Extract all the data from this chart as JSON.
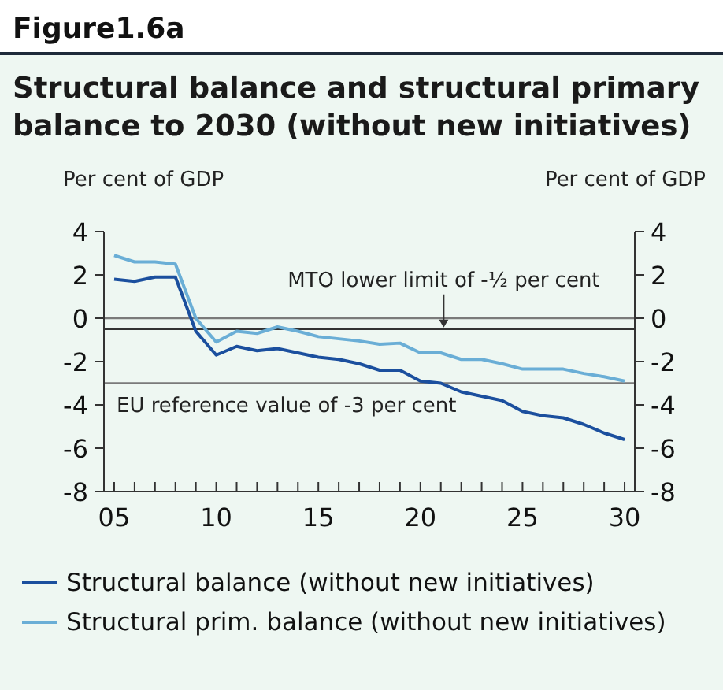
{
  "chart_data": {
    "type": "line",
    "title": "Figure1.6a",
    "subtitle": "Structural balance and structural primary balance to 2030 (without new initiatives)",
    "ylabel": "Per cent of GDP",
    "y2label": "Per cent of GDP",
    "x": [
      2005,
      2006,
      2007,
      2008,
      2009,
      2010,
      2011,
      2012,
      2013,
      2014,
      2015,
      2016,
      2017,
      2018,
      2019,
      2020,
      2021,
      2022,
      2023,
      2024,
      2025,
      2026,
      2027,
      2028,
      2029,
      2030
    ],
    "series": [
      {
        "name": "Structural balance (without new initiatives)",
        "color": "#1b4f9e",
        "values": [
          1.8,
          1.7,
          1.9,
          1.9,
          -0.6,
          -1.7,
          -1.3,
          -1.5,
          -1.4,
          -1.6,
          -1.8,
          -1.9,
          -2.1,
          -2.4,
          -2.4,
          -2.9,
          -3.0,
          -3.4,
          -3.6,
          -3.8,
          -4.3,
          -4.5,
          -4.6,
          -4.9,
          -5.3,
          -5.6
        ]
      },
      {
        "name": "Structural prim. balance (without new initiatives)",
        "color": "#6aaed6",
        "values": [
          2.9,
          2.6,
          2.6,
          2.5,
          0.0,
          -1.1,
          -0.6,
          -0.7,
          -0.4,
          -0.6,
          -0.85,
          -0.95,
          -1.05,
          -1.2,
          -1.15,
          -1.6,
          -1.6,
          -1.9,
          -1.9,
          -2.1,
          -2.35,
          -2.35,
          -2.35,
          -2.55,
          -2.7,
          -2.9
        ]
      }
    ],
    "xlim": [
      2004.5,
      2030.5
    ],
    "xticks": [
      {
        "value": 2005,
        "label": "05"
      },
      {
        "value": 2006,
        "label": null
      },
      {
        "value": 2007,
        "label": null
      },
      {
        "value": 2008,
        "label": null
      },
      {
        "value": 2009,
        "label": null
      },
      {
        "value": 2010,
        "label": "10"
      },
      {
        "value": 2011,
        "label": null
      },
      {
        "value": 2012,
        "label": null
      },
      {
        "value": 2013,
        "label": null
      },
      {
        "value": 2014,
        "label": null
      },
      {
        "value": 2015,
        "label": "15"
      },
      {
        "value": 2016,
        "label": null
      },
      {
        "value": 2017,
        "label": null
      },
      {
        "value": 2018,
        "label": null
      },
      {
        "value": 2019,
        "label": null
      },
      {
        "value": 2020,
        "label": "20"
      },
      {
        "value": 2021,
        "label": null
      },
      {
        "value": 2022,
        "label": null
      },
      {
        "value": 2023,
        "label": null
      },
      {
        "value": 2024,
        "label": null
      },
      {
        "value": 2025,
        "label": "25"
      },
      {
        "value": 2026,
        "label": null
      },
      {
        "value": 2027,
        "label": null
      },
      {
        "value": 2028,
        "label": null
      },
      {
        "value": 2029,
        "label": null
      },
      {
        "value": 2030,
        "label": "30"
      }
    ],
    "ylim": [
      -8,
      4
    ],
    "yticks": [
      -8,
      -6,
      -4,
      -2,
      0,
      2,
      4
    ],
    "y2lim": [
      -8,
      4
    ],
    "y2ticks": [
      -8,
      -6,
      -4,
      -2,
      0,
      2,
      4
    ],
    "ref_lines": [
      {
        "axis": "y",
        "value": 0,
        "color": "#7a7a7a"
      },
      {
        "axis": "y",
        "value": -0.5,
        "label": "MTO lower limit of -½ per cent",
        "color": "#333333"
      },
      {
        "axis": "y",
        "value": -3,
        "label": "EU reference value of -3 per cent",
        "color": "#7a7a7a"
      }
    ],
    "legend": "bottom",
    "grid": false,
    "marker": "none",
    "line_style": "solid"
  }
}
